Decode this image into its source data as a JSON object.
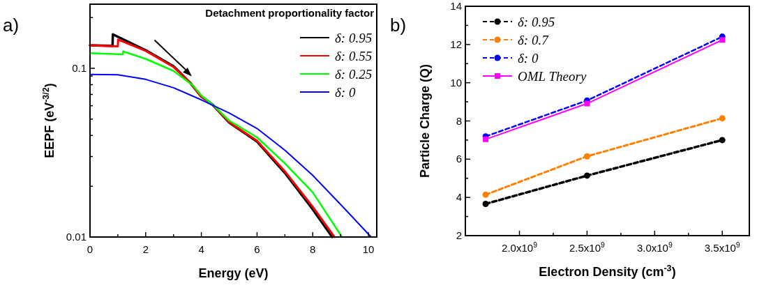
{
  "chart_data": [
    {
      "type": "line",
      "xlabel": "Energy (eV)",
      "ylabel": "EEPF (eV$^{-3/2}$)",
      "log": "y",
      "legend": "top right",
      "legend_title": "Detachment proportionality factor",
      "annotations": [
        "a)"
      ],
      "marker": "none",
      "line_style": "solid",
      "xlim": [
        0,
        10.3
      ],
      "xticks": [
        0,
        {
          "value": 1,
          "label": null
        },
        2,
        {
          "value": 3,
          "label": null
        },
        4,
        {
          "value": 5,
          "label": null
        },
        6,
        {
          "value": 7,
          "label": null
        },
        8,
        {
          "value": 9,
          "label": null
        },
        10
      ],
      "ylim": [
        0.01,
        0.24
      ],
      "yticks": [
        0.01,
        {
          "value": 0.02,
          "label": null
        },
        {
          "value": 0.03,
          "label": null
        },
        {
          "value": 0.04,
          "label": null
        },
        {
          "value": 0.05,
          "label": null
        },
        {
          "value": 0.06,
          "label": null
        },
        {
          "value": 0.07,
          "label": null
        },
        {
          "value": 0.08,
          "label": null
        },
        {
          "value": 0.09,
          "label": null
        },
        0.1,
        {
          "value": 0.2,
          "label": null
        }
      ],
      "series": [
        {
          "name": "δ: 0.95",
          "color": "#000000",
          "x": [
            0,
            0.81,
            0.82,
            2,
            3,
            3.6,
            4,
            4.4,
            5,
            6,
            7,
            8,
            8.7
          ],
          "values": [
            0.137,
            0.136,
            0.159,
            0.128,
            0.103,
            0.082,
            0.068,
            0.061,
            0.0477,
            0.0368,
            0.024,
            0.0146,
            0.01
          ]
        },
        {
          "name": "δ: 0.55",
          "color": "#ff0000",
          "x": [
            0,
            1.0,
            1.01,
            2,
            3,
            3.6,
            4,
            4.4,
            5,
            6,
            7,
            8,
            8.78
          ],
          "values": [
            0.137,
            0.135,
            0.148,
            0.127,
            0.102,
            0.082,
            0.068,
            0.061,
            0.048,
            0.0372,
            0.0245,
            0.0151,
            0.01
          ]
        },
        {
          "name": "δ: 0.25",
          "color": "#00ff00",
          "x": [
            0,
            1.18,
            1.19,
            2,
            3,
            3.7,
            4,
            4.4,
            5,
            6,
            7,
            8,
            9.05
          ],
          "values": [
            0.123,
            0.121,
            0.126,
            0.1137,
            0.0965,
            0.079,
            0.069,
            0.061,
            0.049,
            0.039,
            0.0273,
            0.0184,
            0.01
          ]
        },
        {
          "name": "δ: 0",
          "color": "#0000ff",
          "x": [
            0,
            1,
            2,
            3,
            4,
            5,
            6,
            7,
            8,
            9,
            10.1
          ],
          "values": [
            0.092,
            0.0915,
            0.086,
            0.0767,
            0.065,
            0.0543,
            0.044,
            0.0327,
            0.0232,
            0.0156,
            0.01
          ]
        }
      ]
    },
    {
      "type": "line",
      "xlabel": "Electron Density (cm$^{-3}$)",
      "ylabel": "Particle Charge (Q)",
      "legend": "top left",
      "annotations": [
        "b)"
      ],
      "xlim": [
        1600000000.0,
        3700000000.0
      ],
      "xticks": [
        {
          "value": 2000000000.0,
          "label": "2.0x10$^{9}$"
        },
        {
          "value": 2250000000.0,
          "label": null
        },
        {
          "value": 2500000000.0,
          "label": "2.5x10$^{9}$"
        },
        {
          "value": 2750000000.0,
          "label": null
        },
        {
          "value": 3000000000.0,
          "label": "3.0x10$^{9}$"
        },
        {
          "value": 3250000000.0,
          "label": null
        },
        {
          "value": 3500000000.0,
          "label": "3.5x10$^{9}$"
        }
      ],
      "ylim": [
        2,
        14
      ],
      "yticks": [
        2,
        {
          "value": 3,
          "label": null
        },
        4,
        {
          "value": 5,
          "label": null
        },
        6,
        {
          "value": 7,
          "label": null
        },
        8,
        {
          "value": 9,
          "label": null
        },
        10,
        {
          "value": 11,
          "label": null
        },
        12,
        {
          "value": 13,
          "label": null
        },
        14
      ],
      "x": [
        1750000000.0,
        2500000000.0,
        3500000000.0
      ],
      "series": [
        {
          "name": "δ: 0.95",
          "color": "#000000",
          "marker": "circle",
          "line_style": "dashed",
          "values": [
            3.66,
            5.14,
            7.0
          ]
        },
        {
          "name": "δ: 0.7",
          "color": "#ff8000",
          "marker": "circle",
          "line_style": "dashed",
          "values": [
            4.14,
            6.15,
            8.14
          ]
        },
        {
          "name": "δ: 0",
          "color": "#0000ff",
          "marker": "circle",
          "line_style": "dashed",
          "values": [
            7.19,
            9.07,
            12.41
          ]
        },
        {
          "name": "OML Theory",
          "color": "#ff00ff",
          "marker": "square",
          "line_style": "solid",
          "values": [
            7.04,
            8.91,
            12.24
          ]
        }
      ]
    }
  ]
}
